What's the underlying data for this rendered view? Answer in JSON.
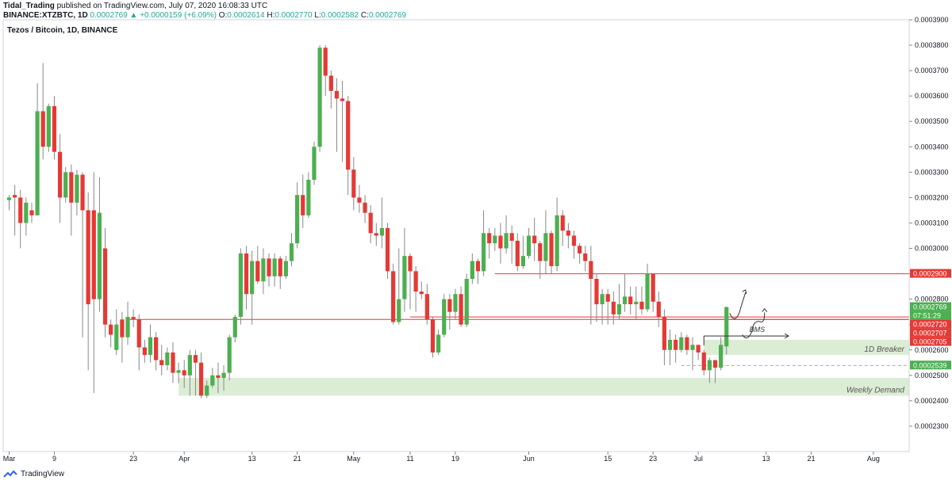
{
  "header": {
    "line1_author": "Tidal_Trading",
    "line1_rest": "published on TradingView.com, July 07, 2020 16:08:33 UTC",
    "symbol": "BINANCE:XTZBTC, 1D",
    "last": "0.0002769",
    "change": "▲ +0.0000159 (+6.09%)",
    "o_label": "O:",
    "o": "0.0002614",
    "h_label": "H:",
    "h": "0.0002770",
    "l_label": "L:",
    "l": "0.0002582",
    "c_label": "C:",
    "c": "0.0002769"
  },
  "footer": {
    "brand": "TradingView"
  },
  "colors": {
    "up": "#4caf50",
    "down": "#e53935",
    "line": "#e57373",
    "zone": "#dcedd5",
    "dashed": "#81c784"
  },
  "chart_data": {
    "type": "candlestick",
    "title": "Tezos / Bitcoin, 1D, BINANCE",
    "ylim": [
      0.00022,
      0.00039
    ],
    "y_ticks": [
      "0.0002300",
      "0.0002400",
      "0.0002500",
      "0.0002600",
      "0.0002700",
      "0.0002800",
      "0.0002900",
      "0.0003000",
      "0.0003100",
      "0.0003200",
      "0.0003300",
      "0.0003400",
      "0.0003500",
      "0.0003600",
      "0.0003700",
      "0.0003800",
      "0.0003900"
    ],
    "x_ticks": [
      {
        "label": "Mar",
        "idx": 0
      },
      {
        "label": "9",
        "idx": 8
      },
      {
        "label": "23",
        "idx": 22
      },
      {
        "label": "Apr",
        "idx": 31
      },
      {
        "label": "13",
        "idx": 43
      },
      {
        "label": "21",
        "idx": 51
      },
      {
        "label": "May",
        "idx": 61
      },
      {
        "label": "11",
        "idx": 71
      },
      {
        "label": "19",
        "idx": 79
      },
      {
        "label": "Jun",
        "idx": 92
      },
      {
        "label": "15",
        "idx": 106
      },
      {
        "label": "23",
        "idx": 114
      },
      {
        "label": "Jul",
        "idx": 122
      },
      {
        "label": "13",
        "idx": 134
      },
      {
        "label": "21",
        "idx": 142
      },
      {
        "label": "Aug",
        "idx": 153
      }
    ],
    "candles": [
      [
        0.000319,
        0.00032,
        0.000315,
        0.000321
      ],
      [
        0.000321,
        0.00032,
        0.000305,
        0.000325
      ],
      [
        0.00032,
        0.00031,
        0.0003,
        0.000323
      ],
      [
        0.00031,
        0.000318,
        0.000305,
        0.00032
      ],
      [
        0.000315,
        0.000313,
        0.00031,
        0.000318
      ],
      [
        0.000313,
        0.000354,
        0.000313,
        0.000365
      ],
      [
        0.000354,
        0.00034,
        0.000335,
        0.000373
      ],
      [
        0.00034,
        0.000356,
        0.000338,
        0.000357
      ],
      [
        0.000356,
        0.000338,
        0.000335,
        0.00036
      ],
      [
        0.000338,
        0.00032,
        0.00031,
        0.000345
      ],
      [
        0.00032,
        0.00033,
        0.000318,
        0.000332
      ],
      [
        0.00033,
        0.000318,
        0.000305,
        0.000333
      ],
      [
        0.000318,
        0.000329,
        0.000313,
        0.000331
      ],
      [
        0.000329,
        0.000315,
        0.000265,
        0.00033
      ],
      [
        0.000315,
        0.000278,
        0.000252,
        0.000322
      ],
      [
        0.000315,
        0.00028,
        0.000243,
        0.00033
      ],
      [
        0.00028,
        0.000314,
        0.000275,
        0.000328
      ],
      [
        0.0003,
        0.00027,
        0.000265,
        0.000308
      ],
      [
        0.00027,
        0.000266,
        0.000261,
        0.000272
      ],
      [
        0.00026,
        0.00027,
        0.000258,
        0.000276
      ],
      [
        0.000272,
        0.000265,
        0.000255,
        0.000275
      ],
      [
        0.000265,
        0.000273,
        0.000262,
        0.000279
      ],
      [
        0.000273,
        0.000272,
        0.000269,
        0.000276
      ],
      [
        0.000272,
        0.000261,
        0.000252,
        0.000274
      ],
      [
        0.000261,
        0.000258,
        0.000255,
        0.000264
      ],
      [
        0.000258,
        0.000265,
        0.000255,
        0.00027
      ],
      [
        0.000265,
        0.000256,
        0.000252,
        0.000267
      ],
      [
        0.000256,
        0.000254,
        0.00025,
        0.000262
      ],
      [
        0.000254,
        0.000259,
        0.000252,
        0.000261
      ],
      [
        0.000259,
        0.000251,
        0.000247,
        0.000263
      ],
      [
        0.000251,
        0.000252,
        0.000247,
        0.000255
      ],
      [
        0.000252,
        0.00025,
        0.000245,
        0.000256
      ],
      [
        0.00025,
        0.000258,
        0.000242,
        0.00026
      ],
      [
        0.000258,
        0.000255,
        0.000242,
        0.00026
      ],
      [
        0.000255,
        0.000242,
        0.000241,
        0.000259
      ],
      [
        0.000242,
        0.000246,
        0.000241,
        0.000248
      ],
      [
        0.000246,
        0.00025,
        0.000245,
        0.000253
      ],
      [
        0.00025,
        0.000249,
        0.000243,
        0.000255
      ],
      [
        0.000249,
        0.000251,
        0.000244,
        0.000254
      ],
      [
        0.000251,
        0.000265,
        0.000248,
        0.000266
      ],
      [
        0.000265,
        0.000273,
        0.000263,
        0.000274
      ],
      [
        0.000273,
        0.000298,
        0.00027,
        0.0003
      ],
      [
        0.000298,
        0.000282,
        0.000276,
        0.000301
      ],
      [
        0.000282,
        0.000295,
        0.00027,
        0.000299
      ],
      [
        0.000295,
        0.000287,
        0.000286,
        0.000301
      ],
      [
        0.000287,
        0.000296,
        0.000282,
        0.0003
      ],
      [
        0.000296,
        0.000289,
        0.000285,
        0.000298
      ],
      [
        0.000289,
        0.000296,
        0.000285,
        0.000298
      ],
      [
        0.000296,
        0.000289,
        0.000284,
        0.000297
      ],
      [
        0.000289,
        0.000295,
        0.000288,
        0.000297
      ],
      [
        0.000295,
        0.000302,
        0.000293,
        0.000306
      ],
      [
        0.000302,
        0.000321,
        0.0003,
        0.000326
      ],
      [
        0.000321,
        0.000313,
        0.000308,
        0.000329
      ],
      [
        0.000313,
        0.000327,
        0.000312,
        0.00033
      ],
      [
        0.000327,
        0.00034,
        0.000325,
        0.000342
      ],
      [
        0.00034,
        0.000379,
        0.000338,
        0.00038
      ],
      [
        0.000379,
        0.000368,
        0.00036,
        0.00038
      ],
      [
        0.000368,
        0.000362,
        0.000355,
        0.00037
      ],
      [
        0.000362,
        0.000359,
        0.000338,
        0.000367
      ],
      [
        0.000359,
        0.000358,
        0.000334,
        0.000366
      ],
      [
        0.000358,
        0.000331,
        0.000321,
        0.00036
      ],
      [
        0.000331,
        0.00032,
        0.000315,
        0.000336
      ],
      [
        0.00032,
        0.000318,
        0.000314,
        0.000325
      ],
      [
        0.000318,
        0.000314,
        0.00031,
        0.000321
      ],
      [
        0.000314,
        0.000306,
        0.000302,
        0.000317
      ],
      [
        0.000306,
        0.000305,
        0.000301,
        0.00031
      ],
      [
        0.000305,
        0.000308,
        0.0003,
        0.00032
      ],
      [
        0.000308,
        0.000291,
        0.000288,
        0.00031
      ],
      [
        0.000291,
        0.000271,
        0.00027,
        0.000294
      ],
      [
        0.000271,
        0.00028,
        0.00027,
        0.0003
      ],
      [
        0.00028,
        0.000297,
        0.000275,
        0.000308
      ],
      [
        0.000297,
        0.000291,
        0.000276,
        0.000298
      ],
      [
        0.000291,
        0.000283,
        0.000275,
        0.000293
      ],
      [
        0.000283,
        0.000282,
        0.00028,
        0.000287
      ],
      [
        0.000282,
        0.000272,
        0.00027,
        0.000286
      ],
      [
        0.000272,
        0.000259,
        0.000257,
        0.000273
      ],
      [
        0.000259,
        0.000266,
        0.000258,
        0.000268
      ],
      [
        0.000266,
        0.00028,
        0.000265,
        0.000282
      ],
      [
        0.00028,
        0.000275,
        0.000268,
        0.000282
      ],
      [
        0.000275,
        0.000282,
        0.000272,
        0.000284
      ],
      [
        0.000282,
        0.00027,
        0.000269,
        0.000285
      ],
      [
        0.00027,
        0.000288,
        0.000269,
        0.00029
      ],
      [
        0.000288,
        0.000295,
        0.000286,
        0.000298
      ],
      [
        0.000295,
        0.000291,
        0.000286,
        0.000296
      ],
      [
        0.000291,
        0.000306,
        0.000289,
        0.000315
      ],
      [
        0.000306,
        0.000302,
        0.000296,
        0.000308
      ],
      [
        0.000302,
        0.000305,
        0.000299,
        0.000308
      ],
      [
        0.000305,
        0.0003,
        0.000294,
        0.00031
      ],
      [
        0.0003,
        0.000306,
        0.000298,
        0.000313
      ],
      [
        0.000306,
        0.000303,
        0.000294,
        0.000309
      ],
      [
        0.000303,
        0.000293,
        0.000291,
        0.000306
      ],
      [
        0.000293,
        0.000297,
        0.000292,
        0.000305
      ],
      [
        0.000297,
        0.000305,
        0.000296,
        0.000308
      ],
      [
        0.000305,
        0.000302,
        0.000295,
        0.000312
      ],
      [
        0.000302,
        0.000295,
        0.000288,
        0.000303
      ],
      [
        0.000295,
        0.000306,
        0.00029,
        0.000315
      ],
      [
        0.000306,
        0.000293,
        0.00029,
        0.000307
      ],
      [
        0.000293,
        0.000313,
        0.000291,
        0.00032
      ],
      [
        0.000313,
        0.000307,
        0.000301,
        0.000315
      ],
      [
        0.000307,
        0.000305,
        0.0003,
        0.00031
      ],
      [
        0.000305,
        0.000301,
        0.000296,
        0.000307
      ],
      [
        0.000301,
        0.000298,
        0.000294,
        0.000302
      ],
      [
        0.000298,
        0.000295,
        0.000291,
        0.000301
      ],
      [
        0.000295,
        0.000288,
        0.00027,
        0.000301
      ],
      [
        0.000288,
        0.000278,
        0.000271,
        0.00029
      ],
      [
        0.000278,
        0.000282,
        0.00027,
        0.000284
      ],
      [
        0.000282,
        0.000279,
        0.00027,
        0.000284
      ],
      [
        0.000279,
        0.000274,
        0.00027,
        0.000283
      ],
      [
        0.000274,
        0.000278,
        0.000272,
        0.000286
      ],
      [
        0.000278,
        0.000281,
        0.000275,
        0.00029
      ],
      [
        0.000281,
        0.000278,
        0.000274,
        0.000285
      ],
      [
        0.000278,
        0.000279,
        0.000272,
        0.000285
      ],
      [
        0.000279,
        0.000276,
        0.000274,
        0.000285
      ],
      [
        0.000276,
        0.00029,
        0.000275,
        0.000294
      ],
      [
        0.00029,
        0.000279,
        0.000275,
        0.00029
      ],
      [
        0.000279,
        0.000273,
        0.000269,
        0.000283
      ],
      [
        0.000273,
        0.00026,
        0.000254,
        0.000276
      ],
      [
        0.00026,
        0.000264,
        0.000254,
        0.000268
      ],
      [
        0.000264,
        0.00026,
        0.000255,
        0.000266
      ],
      [
        0.00026,
        0.000265,
        0.000259,
        0.000267
      ],
      [
        0.000265,
        0.00026,
        0.000258,
        0.000266
      ],
      [
        0.00026,
        0.000262,
        0.000252,
        0.000265
      ],
      [
        0.000262,
        0.000259,
        0.000256,
        0.000262
      ],
      [
        0.000259,
        0.000252,
        0.00025,
        0.00026
      ],
      [
        0.000252,
        0.000256,
        0.000247,
        0.000257
      ],
      [
        0.000256,
        0.000253,
        0.000247,
        0.000256
      ],
      [
        0.000253,
        0.000262,
        0.000252,
        0.000265
      ],
      [
        0.0002614,
        0.0002769,
        0.0002582,
        0.000277
      ]
    ],
    "h_lines": [
      {
        "value": 0.00029,
        "from_idx": 86,
        "color": "#e53935"
      },
      {
        "value": 0.000272,
        "from_idx": 21,
        "color": "#e53935"
      },
      {
        "value": 0.000273,
        "from_idx": 71,
        "color": "#e53935"
      },
      {
        "value": 0.000272,
        "from_idx": 108,
        "color": "#e53935"
      }
    ],
    "zones": [
      {
        "label": "1D Breaker",
        "from_idx": 123,
        "low": 0.000258,
        "high": 0.000264
      },
      {
        "label": "Weekly Demand",
        "from_idx": 30,
        "low": 0.000242,
        "high": 0.000249
      }
    ],
    "dashed_line": {
      "value": 0.0002539,
      "from_idx": 119
    },
    "bms": {
      "label": "BMS",
      "value": 0.0002655,
      "from_idx": 123,
      "to_idx": 138
    },
    "price_labels": [
      {
        "text": "0.0002900",
        "value": 0.00029,
        "bg": "#e53935"
      },
      {
        "text": "0.0002769",
        "value": 0.0002769,
        "bg": "#4caf50"
      },
      {
        "text": "07:51:29",
        "value": 0.0002745,
        "bg": "#4caf50"
      },
      {
        "text": "0.0002720",
        "value": 0.000272,
        "bg": "#e53935"
      },
      {
        "text": "0.0002707",
        "value": 0.0002707,
        "bg": "#e53935"
      },
      {
        "text": "0.0002705",
        "value": 0.0002705,
        "bg": "#e53935"
      },
      {
        "text": "0.0002539",
        "value": 0.0002539,
        "bg": "#4caf50"
      }
    ]
  }
}
